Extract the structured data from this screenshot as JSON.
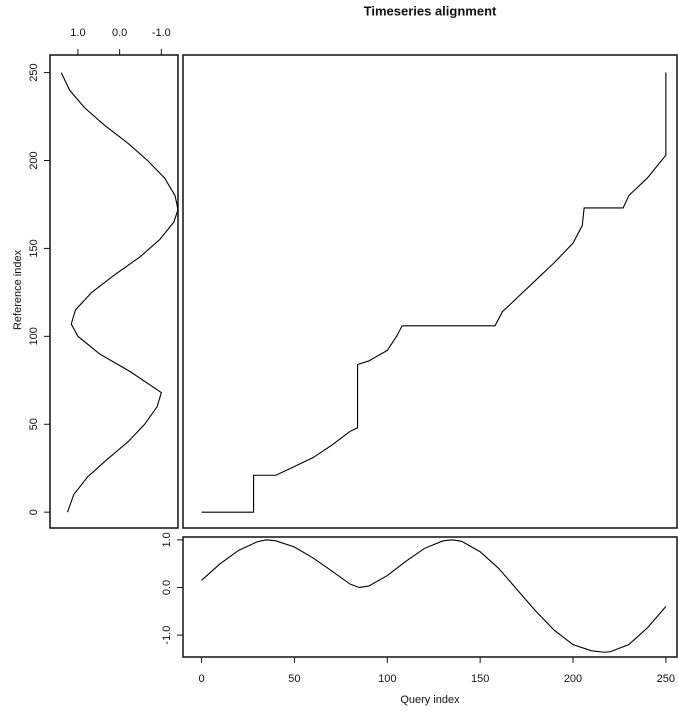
{
  "chart_data": [
    {
      "type": "line",
      "title": "Timeseries alignment",
      "x": [
        0,
        28,
        28,
        40,
        50,
        60,
        70,
        80,
        84,
        84,
        90,
        100,
        105,
        108,
        158,
        162,
        170,
        180,
        190,
        200,
        205,
        206,
        227,
        230,
        240,
        250,
        250
      ],
      "values": [
        0,
        0,
        21,
        21,
        26,
        31,
        38,
        46,
        48,
        84,
        86,
        92,
        100,
        106,
        106,
        114,
        122,
        132,
        142,
        153,
        163,
        173,
        173,
        180,
        190,
        203,
        250
      ],
      "xlim": [
        -10,
        256
      ],
      "ylim": [
        -9,
        260
      ],
      "color": "#000000"
    },
    {
      "type": "line",
      "orientation": "vertical",
      "xlabel": "Reference index",
      "x": [
        0,
        10,
        20,
        30,
        40,
        50,
        60,
        68,
        80,
        90,
        100,
        107,
        115,
        125,
        135,
        145,
        155,
        165,
        172,
        180,
        190,
        200,
        210,
        220,
        230,
        240,
        250
      ],
      "values": [
        1.25,
        1.1,
        0.77,
        0.3,
        -0.2,
        -0.6,
        -0.9,
        -1.0,
        -0.25,
        0.48,
        1.0,
        1.16,
        1.06,
        0.67,
        0.12,
        -0.48,
        -0.96,
        -1.3,
        -1.4,
        -1.33,
        -1.08,
        -0.67,
        -0.19,
        0.36,
        0.84,
        1.2,
        1.4
      ],
      "xlim": [
        -9,
        260
      ],
      "xticks": [
        0,
        50,
        100,
        150,
        200,
        250
      ],
      "ylim": [
        1.67,
        -1.4
      ],
      "yticks": [
        {
          "value": 1,
          "label": "1.0"
        },
        {
          "value": 0,
          "label": "0.0"
        },
        {
          "value": -1,
          "label": "-1.0"
        }
      ],
      "color": "#000000"
    },
    {
      "type": "line",
      "xlabel": "Query index",
      "x": [
        0,
        10,
        20,
        30,
        35,
        40,
        50,
        60,
        70,
        80,
        85,
        90,
        100,
        110,
        120,
        130,
        135,
        140,
        150,
        160,
        170,
        180,
        190,
        200,
        210,
        217,
        220,
        230,
        240,
        250
      ],
      "values": [
        0.15,
        0.5,
        0.78,
        0.96,
        1.0,
        0.98,
        0.85,
        0.62,
        0.35,
        0.07,
        0.0,
        0.03,
        0.25,
        0.55,
        0.82,
        0.98,
        1.0,
        0.97,
        0.75,
        0.4,
        -0.05,
        -0.5,
        -0.9,
        -1.2,
        -1.33,
        -1.36,
        -1.35,
        -1.2,
        -0.85,
        -0.4
      ],
      "xlim": [
        -10,
        256
      ],
      "xticks": [
        0,
        50,
        100,
        150,
        200,
        250
      ],
      "ylim": [
        -1.46,
        1.06
      ],
      "yticks": [
        {
          "value": 1,
          "label": "1.0"
        },
        {
          "value": 0,
          "label": "0.0"
        },
        {
          "value": -1,
          "label": "-1.0"
        }
      ],
      "color": "#000000"
    }
  ]
}
